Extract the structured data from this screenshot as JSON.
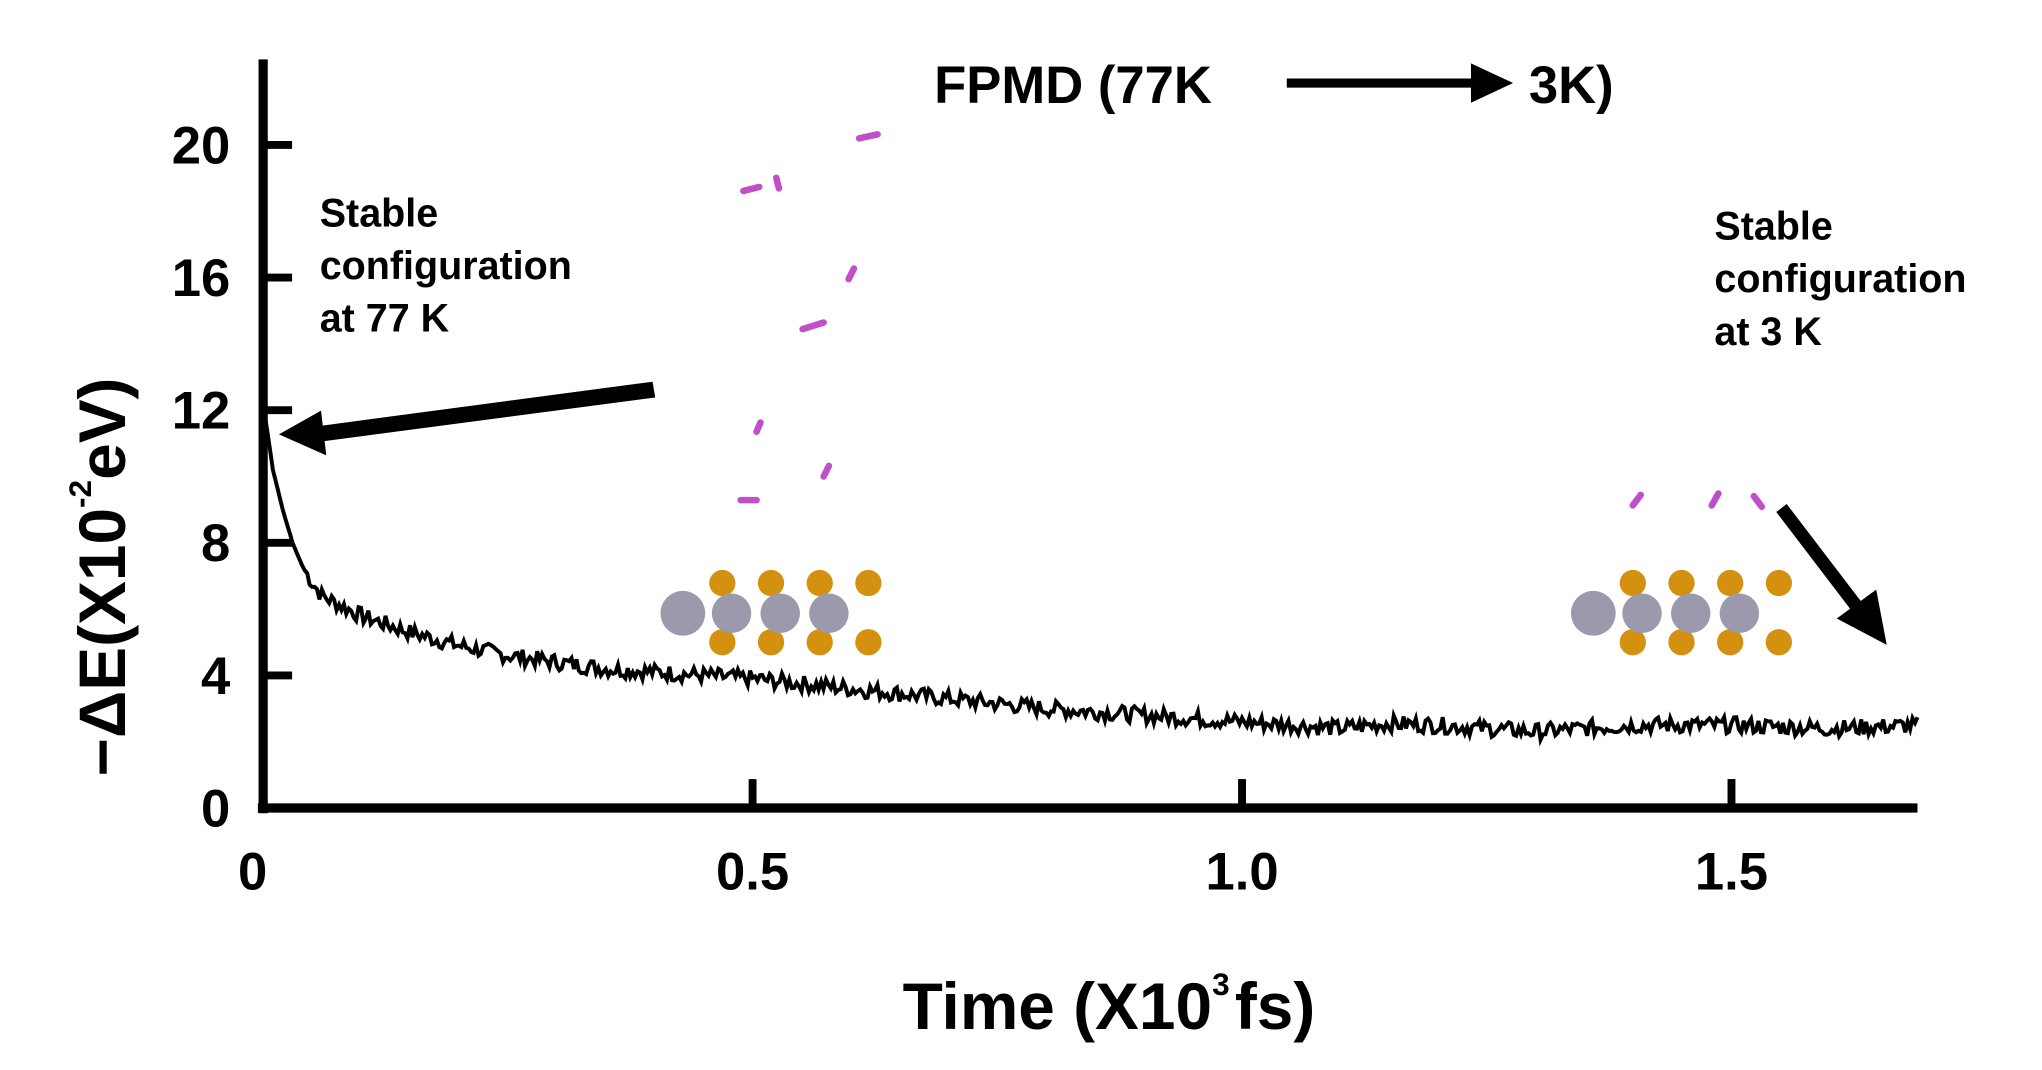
{
  "chart_data": {
    "type": "line",
    "title": "FPMD (77K",
    "title_end": "3K)",
    "xlabel": "Time (X10",
    "xlabel_sup": "3",
    "xlabel_unit": "fs)",
    "ylabel": "−ΔE(X10",
    "ylabel_sup": "-2",
    "ylabel_unit": "eV)",
    "xlim": [
      0,
      1.69
    ],
    "ylim": [
      0,
      22
    ],
    "xticks": [
      0,
      0.5,
      1.0,
      1.5
    ],
    "xtick_labels": [
      "0",
      "0.5",
      "1.0",
      "1.5"
    ],
    "yticks": [
      0,
      4,
      8,
      12,
      16,
      20
    ],
    "ytick_labels": [
      "0",
      "4",
      "8",
      "12",
      "16",
      "20"
    ],
    "series": [
      {
        "name": "-dE",
        "color": "#000000",
        "x": [
          0.002,
          0.01,
          0.02,
          0.03,
          0.04,
          0.05,
          0.06,
          0.08,
          0.1,
          0.15,
          0.2,
          0.25,
          0.3,
          0.35,
          0.4,
          0.45,
          0.5,
          0.55,
          0.6,
          0.65,
          0.7,
          0.75,
          0.8,
          0.85,
          0.9,
          0.95,
          1.0,
          1.05,
          1.1,
          1.15,
          1.2,
          1.25,
          1.3,
          1.35,
          1.4,
          1.45,
          1.5,
          1.55,
          1.6,
          1.65,
          1.69
        ],
        "y": [
          11.8,
          10.2,
          9.0,
          8.0,
          7.3,
          6.8,
          6.4,
          6.1,
          5.8,
          5.3,
          4.9,
          4.6,
          4.4,
          4.2,
          4.1,
          4.0,
          3.9,
          3.75,
          3.6,
          3.45,
          3.3,
          3.15,
          3.0,
          2.9,
          2.8,
          2.7,
          2.6,
          2.5,
          2.4,
          2.55,
          2.5,
          2.4,
          2.3,
          2.4,
          2.5,
          2.5,
          2.5,
          2.45,
          2.4,
          2.45,
          2.5
        ]
      }
    ],
    "annotations": [
      {
        "lines": [
          "Stable",
          "configuration",
          "at 77 K"
        ]
      },
      {
        "lines": [
          "Stable",
          "configuration",
          "at 3 K"
        ]
      }
    ],
    "colors": {
      "sulfur": "#d4900f",
      "metal": "#9a9aac",
      "molecule": "#c050c8"
    }
  }
}
